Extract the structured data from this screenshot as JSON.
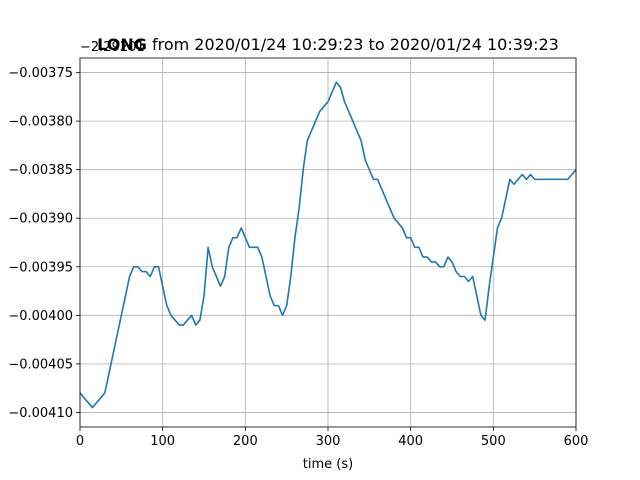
{
  "chart_data": {
    "type": "line",
    "title_bold": "LONG",
    "title_rest": " from 2020/01/24 10:29:23 to 2020/01/24 10:39:23",
    "offset_label": "−2.29201",
    "xlabel": "time (s)",
    "ylabel": "",
    "xlim": [
      0,
      600
    ],
    "ylim": [
      -0.004115,
      -0.003735
    ],
    "x_ticks": [
      0,
      100,
      200,
      300,
      400,
      500,
      600
    ],
    "x_tick_labels": [
      "0",
      "100",
      "200",
      "300",
      "400",
      "500",
      "600"
    ],
    "y_ticks": [
      -0.0041,
      -0.00405,
      -0.004,
      -0.00395,
      -0.0039,
      -0.00385,
      -0.0038,
      -0.00375
    ],
    "y_tick_labels": [
      "−0.00410",
      "−0.00405",
      "−0.00400",
      "−0.00395",
      "−0.00390",
      "−0.00385",
      "−0.00380",
      "−0.00375"
    ],
    "grid": true,
    "line_color": "#1f77b4",
    "series": [
      {
        "x": [
          0,
          5,
          10,
          15,
          20,
          25,
          30,
          35,
          40,
          45,
          50,
          55,
          60,
          65,
          70,
          75,
          80,
          85,
          90,
          95,
          100,
          105,
          110,
          115,
          120,
          125,
          130,
          135,
          140,
          145,
          150,
          155,
          160,
          165,
          170,
          175,
          180,
          185,
          190,
          195,
          200,
          205,
          210,
          215,
          220,
          225,
          230,
          235,
          240,
          245,
          250,
          255,
          260,
          265,
          270,
          275,
          280,
          285,
          290,
          295,
          300,
          305,
          310,
          315,
          320,
          325,
          330,
          335,
          340,
          345,
          350,
          355,
          360,
          365,
          370,
          375,
          380,
          385,
          390,
          395,
          400,
          405,
          410,
          415,
          420,
          425,
          430,
          435,
          440,
          445,
          450,
          455,
          460,
          465,
          470,
          475,
          480,
          485,
          490,
          495,
          500,
          505,
          510,
          515,
          520,
          525,
          530,
          535,
          540,
          545,
          550,
          555,
          560,
          565,
          570,
          575,
          580,
          585,
          590,
          595,
          600
        ],
        "values": [
          -0.00408,
          -0.004085,
          -0.00409,
          -0.004095,
          -0.00409,
          -0.004085,
          -0.00408,
          -0.00406,
          -0.00404,
          -0.00402,
          -0.004,
          -0.00398,
          -0.00396,
          -0.00395,
          -0.00395,
          -0.003955,
          -0.003955,
          -0.00396,
          -0.00395,
          -0.00395,
          -0.00397,
          -0.00399,
          -0.004,
          -0.004005,
          -0.00401,
          -0.00401,
          -0.004005,
          -0.004,
          -0.00401,
          -0.004005,
          -0.00398,
          -0.00393,
          -0.00395,
          -0.00396,
          -0.00397,
          -0.00396,
          -0.00393,
          -0.00392,
          -0.00392,
          -0.00391,
          -0.00392,
          -0.00393,
          -0.00393,
          -0.00393,
          -0.00394,
          -0.00396,
          -0.00398,
          -0.00399,
          -0.00399,
          -0.004,
          -0.00399,
          -0.00396,
          -0.00392,
          -0.00389,
          -0.00385,
          -0.00382,
          -0.00381,
          -0.0038,
          -0.00379,
          -0.003785,
          -0.00378,
          -0.00377,
          -0.00376,
          -0.003765,
          -0.00378,
          -0.00379,
          -0.0038,
          -0.00381,
          -0.00382,
          -0.00384,
          -0.00385,
          -0.00386,
          -0.00386,
          -0.00387,
          -0.00388,
          -0.00389,
          -0.0039,
          -0.003905,
          -0.00391,
          -0.00392,
          -0.00392,
          -0.00393,
          -0.00393,
          -0.00394,
          -0.00394,
          -0.003945,
          -0.003945,
          -0.00395,
          -0.00395,
          -0.00394,
          -0.003945,
          -0.003955,
          -0.00396,
          -0.00396,
          -0.003965,
          -0.00396,
          -0.00398,
          -0.004,
          -0.004005,
          -0.00397,
          -0.00394,
          -0.00391,
          -0.0039,
          -0.00388,
          -0.00386,
          -0.003865,
          -0.00386,
          -0.003855,
          -0.00386,
          -0.003855,
          -0.00386,
          -0.00386,
          -0.00386,
          -0.00386,
          -0.00386,
          -0.00386,
          -0.00386,
          -0.00386,
          -0.00386,
          -0.003855,
          -0.00385
        ]
      }
    ]
  }
}
